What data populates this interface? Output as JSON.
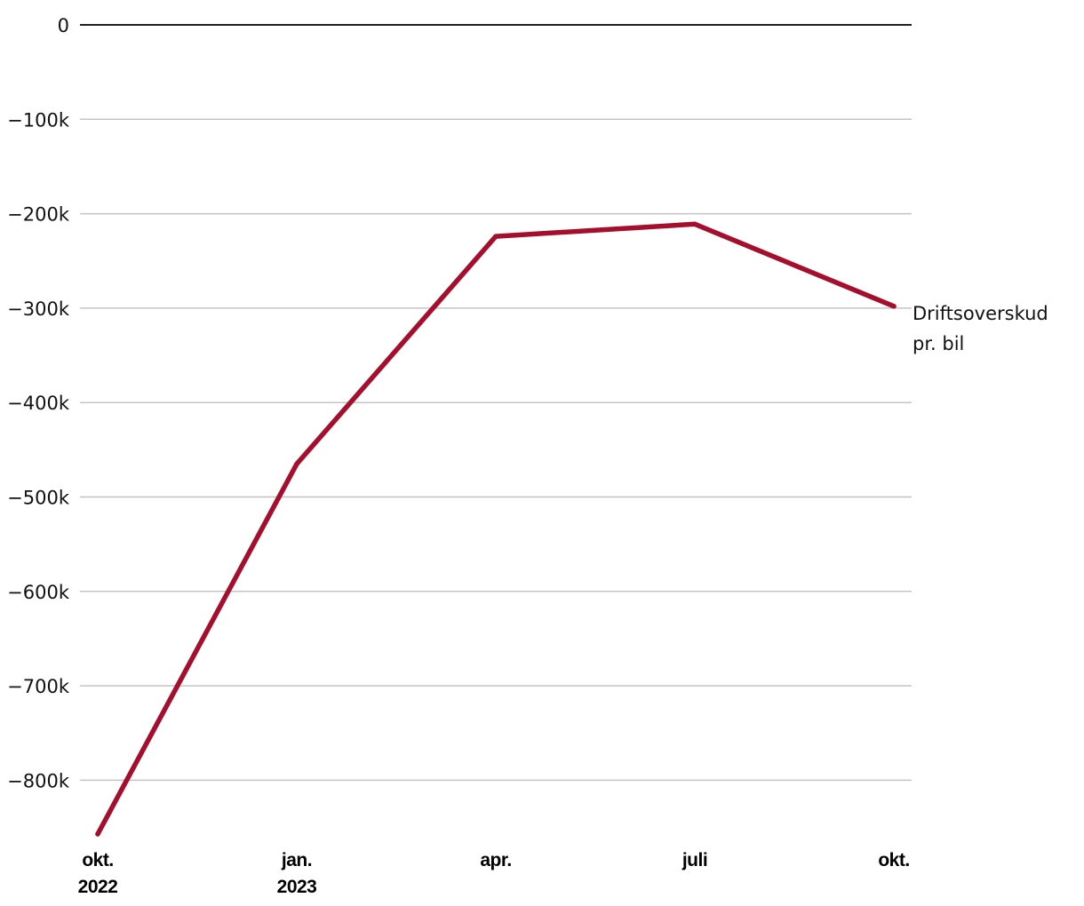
{
  "chart_data": {
    "type": "line",
    "title": "",
    "xlabel": "",
    "ylabel": "",
    "x": [
      [
        "okt.",
        "2022"
      ],
      [
        "jan.",
        "2023"
      ],
      [
        "apr."
      ],
      [
        "juli"
      ],
      [
        "okt."
      ]
    ],
    "y_ticks": [
      {
        "value": 0,
        "label": "0"
      },
      {
        "value": -100000,
        "label": "−100k"
      },
      {
        "value": -200000,
        "label": "−200k"
      },
      {
        "value": -300000,
        "label": "−300k"
      },
      {
        "value": -400000,
        "label": "−400k"
      },
      {
        "value": -500000,
        "label": "−500k"
      },
      {
        "value": -600000,
        "label": "−600k"
      },
      {
        "value": -700000,
        "label": "−700k"
      },
      {
        "value": -800000,
        "label": "−800k"
      }
    ],
    "ylim": [
      -857000,
      0
    ],
    "grid": true,
    "series": [
      {
        "name": "Driftsoverskud pr. bil",
        "name_lines": [
          "Driftsoverskud",
          "pr. bil"
        ],
        "color": "#a50f2d",
        "values": [
          -857000,
          -465000,
          -224000,
          -211000,
          -298000
        ]
      }
    ]
  }
}
